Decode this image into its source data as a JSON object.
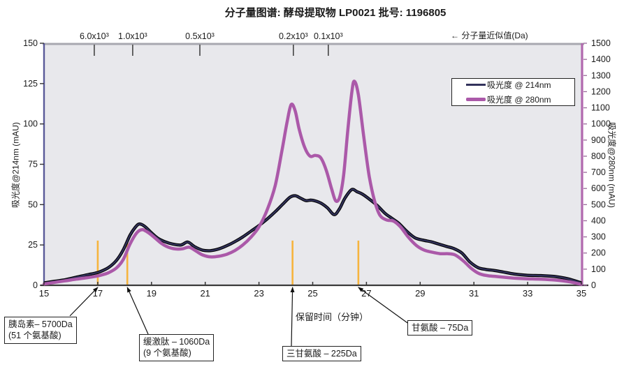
{
  "header": {
    "title": "分子量图谱: 酵母提取物 LP0021  批号: 1196805"
  },
  "chart_data": {
    "type": "line",
    "title": "分子量图谱: 酵母提取物 LP0021  批号: 1196805",
    "plot_bg": "#e8e8ec",
    "x_axis": {
      "label": "保留时间（分钟）",
      "min": 15,
      "max": 35,
      "tick_step": 2,
      "ticks": [
        15,
        17,
        19,
        21,
        23,
        25,
        27,
        29,
        31,
        33,
        35
      ]
    },
    "y_left": {
      "label": "吸光度@214nm (mAU)",
      "min": 0,
      "max": 150,
      "tick_step": 25,
      "ticks": [
        0,
        25,
        50,
        75,
        100,
        125,
        150
      ]
    },
    "y_right": {
      "label": "吸光度@280nm (mAU)",
      "min": 0,
      "max": 1500,
      "tick_step": 100,
      "ticks": [
        0,
        100,
        200,
        300,
        400,
        500,
        600,
        700,
        800,
        900,
        1000,
        1100,
        1200,
        1300,
        1400,
        1500
      ]
    },
    "top_axis": {
      "label": "← 分子量近似值(Da)",
      "ticks": [
        {
          "label": "6.0x10³",
          "t": 16.87
        },
        {
          "label": "1.0x10³",
          "t": 18.3
        },
        {
          "label": "0.5x10³",
          "t": 20.8
        },
        {
          "label": "0.2x10³",
          "t": 24.28
        },
        {
          "label": "0.1x10³",
          "t": 25.58
        }
      ]
    },
    "legend": {
      "position": "top-right"
    },
    "grid": false,
    "series": [
      {
        "name": "吸光度 @ 214nm",
        "axis": "left",
        "color": "#32325c",
        "outline": "#000000",
        "width": 2.2,
        "points": [
          [
            15,
            1.5
          ],
          [
            15.4,
            2.5
          ],
          [
            15.8,
            3.5
          ],
          [
            16.2,
            5
          ],
          [
            16.6,
            6.5
          ],
          [
            16.9,
            7.5
          ],
          [
            17.1,
            8.5
          ],
          [
            17.4,
            11
          ],
          [
            17.7,
            15.5
          ],
          [
            17.95,
            22
          ],
          [
            18.2,
            31
          ],
          [
            18.4,
            36
          ],
          [
            18.55,
            38
          ],
          [
            18.75,
            36.5
          ],
          [
            19,
            32.5
          ],
          [
            19.25,
            29
          ],
          [
            19.5,
            27
          ],
          [
            19.8,
            25.5
          ],
          [
            20.1,
            25
          ],
          [
            20.35,
            26.8
          ],
          [
            20.6,
            24
          ],
          [
            20.9,
            21.8
          ],
          [
            21.2,
            21.5
          ],
          [
            21.5,
            22.5
          ],
          [
            21.8,
            24.5
          ],
          [
            22.1,
            27
          ],
          [
            22.4,
            30
          ],
          [
            22.7,
            33.5
          ],
          [
            23,
            37
          ],
          [
            23.3,
            41
          ],
          [
            23.6,
            45.5
          ],
          [
            23.9,
            50.5
          ],
          [
            24.15,
            54.5
          ],
          [
            24.35,
            55.5
          ],
          [
            24.55,
            54
          ],
          [
            24.75,
            52.5
          ],
          [
            24.95,
            52.8
          ],
          [
            25.15,
            52
          ],
          [
            25.35,
            50.5
          ],
          [
            25.55,
            48
          ],
          [
            25.8,
            43.8
          ],
          [
            26,
            47.5
          ],
          [
            26.2,
            54
          ],
          [
            26.45,
            59.3
          ],
          [
            26.65,
            58
          ],
          [
            26.85,
            56.5
          ],
          [
            27.1,
            53.5
          ],
          [
            27.4,
            49.5
          ],
          [
            27.7,
            44.5
          ],
          [
            27.95,
            41.5
          ],
          [
            28.2,
            38.5
          ],
          [
            28.5,
            33.5
          ],
          [
            28.8,
            29.5
          ],
          [
            29.1,
            28
          ],
          [
            29.4,
            27
          ],
          [
            29.7,
            25.5
          ],
          [
            30,
            24
          ],
          [
            30.25,
            22.8
          ],
          [
            30.55,
            20
          ],
          [
            30.85,
            14.5
          ],
          [
            31.15,
            11
          ],
          [
            31.45,
            9.8
          ],
          [
            31.75,
            9.2
          ],
          [
            32.1,
            8.2
          ],
          [
            32.5,
            7
          ],
          [
            33,
            6.2
          ],
          [
            33.5,
            6
          ],
          [
            34,
            5.5
          ],
          [
            34.5,
            4
          ],
          [
            35,
            1.5
          ]
        ]
      },
      {
        "name": "吸光度 @ 280nm",
        "axis": "right",
        "color": "#ab59a9",
        "width": 4.5,
        "points": [
          [
            15,
            8
          ],
          [
            15.4,
            18
          ],
          [
            15.8,
            28
          ],
          [
            16.2,
            38
          ],
          [
            16.6,
            47
          ],
          [
            16.9,
            55
          ],
          [
            17.1,
            62
          ],
          [
            17.4,
            78
          ],
          [
            17.7,
            108
          ],
          [
            17.95,
            160
          ],
          [
            18.2,
            255
          ],
          [
            18.45,
            325
          ],
          [
            18.65,
            345
          ],
          [
            18.85,
            330
          ],
          [
            19.1,
            298
          ],
          [
            19.35,
            262
          ],
          [
            19.6,
            238
          ],
          [
            19.9,
            225
          ],
          [
            20.15,
            226
          ],
          [
            20.4,
            236
          ],
          [
            20.65,
            213
          ],
          [
            20.9,
            188
          ],
          [
            21.2,
            176
          ],
          [
            21.5,
            180
          ],
          [
            21.8,
            192
          ],
          [
            22.1,
            215
          ],
          [
            22.4,
            250
          ],
          [
            22.7,
            298
          ],
          [
            23,
            362
          ],
          [
            23.3,
            465
          ],
          [
            23.6,
            615
          ],
          [
            23.85,
            830
          ],
          [
            24.05,
            1015
          ],
          [
            24.2,
            1120
          ],
          [
            24.35,
            1080
          ],
          [
            24.5,
            965
          ],
          [
            24.7,
            855
          ],
          [
            24.9,
            800
          ],
          [
            25.1,
            805
          ],
          [
            25.3,
            790
          ],
          [
            25.5,
            715
          ],
          [
            25.7,
            600
          ],
          [
            25.85,
            525
          ],
          [
            26,
            545
          ],
          [
            26.15,
            680
          ],
          [
            26.3,
            950
          ],
          [
            26.45,
            1190
          ],
          [
            26.55,
            1265
          ],
          [
            26.7,
            1180
          ],
          [
            26.9,
            920
          ],
          [
            27.1,
            680
          ],
          [
            27.3,
            525
          ],
          [
            27.5,
            435
          ],
          [
            27.75,
            405
          ],
          [
            28,
            398
          ],
          [
            28.25,
            365
          ],
          [
            28.55,
            300
          ],
          [
            28.85,
            248
          ],
          [
            29.15,
            218
          ],
          [
            29.45,
            205
          ],
          [
            29.75,
            196
          ],
          [
            30.05,
            196
          ],
          [
            30.3,
            188
          ],
          [
            30.6,
            152
          ],
          [
            30.9,
            105
          ],
          [
            31.2,
            72
          ],
          [
            31.5,
            60
          ],
          [
            31.8,
            55
          ],
          [
            32.1,
            50
          ],
          [
            32.5,
            44
          ],
          [
            33,
            40
          ],
          [
            33.5,
            38
          ],
          [
            34,
            33
          ],
          [
            34.5,
            23
          ],
          [
            35,
            6
          ]
        ]
      }
    ],
    "markers": {
      "color": "#f6b43e",
      "height_left_units": 27.7,
      "times": [
        17.0,
        18.1,
        24.25,
        26.7
      ]
    },
    "annotations": [
      {
        "lines": [
          "胰岛素– 5700Da",
          "(51 个氨基酸)"
        ],
        "target_time": 17.0
      },
      {
        "lines": [
          "缓激肽 – 1060Da",
          "(9 个氨基酸)"
        ],
        "target_time": 18.1
      },
      {
        "lines": [
          "三甘氨酸 – 225Da"
        ],
        "target_time": 24.25
      },
      {
        "lines": [
          "甘氨酸 – 75Da"
        ],
        "target_time": 26.7
      }
    ]
  }
}
